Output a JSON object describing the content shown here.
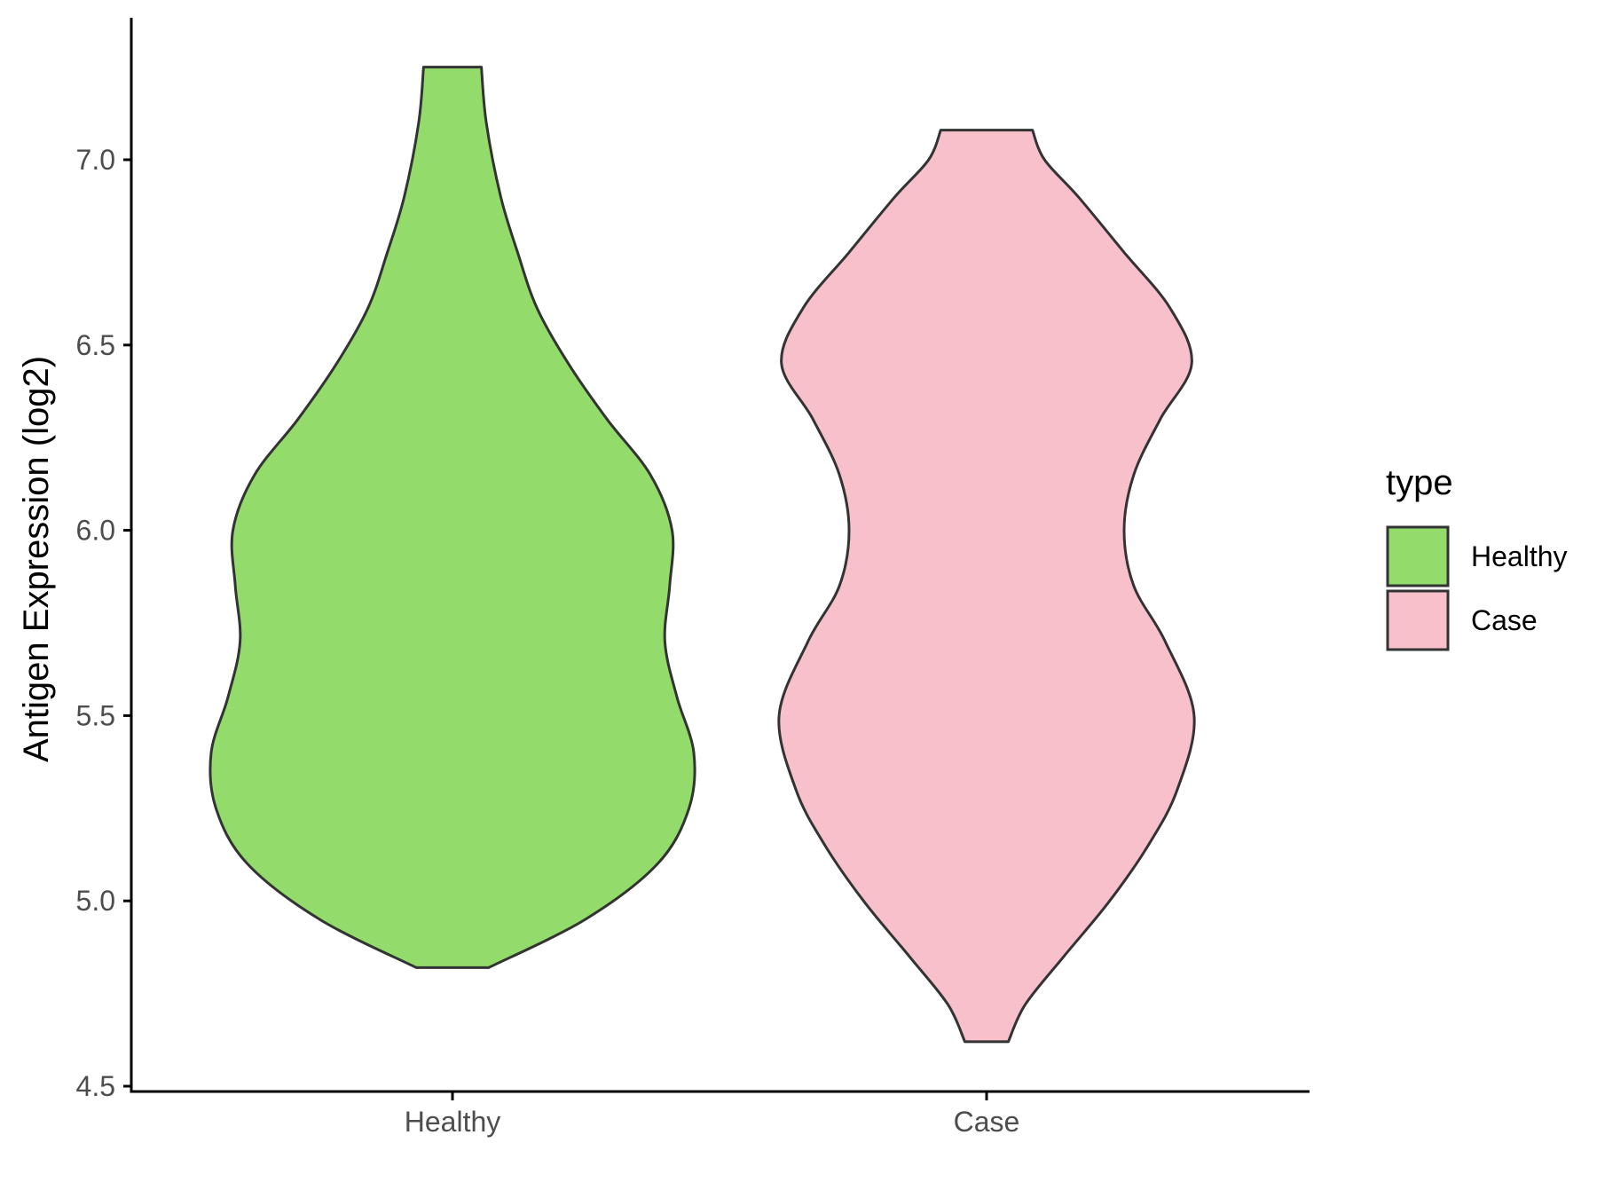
{
  "chart_data": {
    "type": "violin",
    "ylabel": "Antigen Expression (log2)",
    "xlabel": "",
    "ylim": [
      4.5,
      7.35
    ],
    "yticks": [
      "4.5",
      "5.0",
      "5.5",
      "6.0",
      "6.5",
      "7.0"
    ],
    "categories": [
      "Healthy",
      "Case"
    ],
    "grid": false,
    "legend": {
      "title": "type",
      "position": "right",
      "entries": [
        {
          "label": "Healthy",
          "color": "#93dc6b"
        },
        {
          "label": "Case",
          "color": "#f7c0cb"
        }
      ]
    },
    "series": [
      {
        "category": "Healthy",
        "color": "#93dc6b",
        "min": 4.82,
        "max": 7.25,
        "density_profile": [
          [
            4.82,
            0.15
          ],
          [
            4.95,
            0.55
          ],
          [
            5.1,
            0.85
          ],
          [
            5.25,
            0.98
          ],
          [
            5.4,
            1.0
          ],
          [
            5.55,
            0.93
          ],
          [
            5.7,
            0.88
          ],
          [
            5.85,
            0.9
          ],
          [
            6.0,
            0.91
          ],
          [
            6.15,
            0.82
          ],
          [
            6.3,
            0.64
          ],
          [
            6.45,
            0.48
          ],
          [
            6.6,
            0.35
          ],
          [
            6.75,
            0.27
          ],
          [
            6.9,
            0.2
          ],
          [
            7.1,
            0.14
          ],
          [
            7.25,
            0.12
          ]
        ]
      },
      {
        "category": "Case",
        "color": "#f7c0cb",
        "min": 4.62,
        "max": 7.08,
        "density_profile": [
          [
            4.62,
            0.09
          ],
          [
            4.72,
            0.16
          ],
          [
            4.85,
            0.32
          ],
          [
            5.0,
            0.51
          ],
          [
            5.15,
            0.67
          ],
          [
            5.3,
            0.79
          ],
          [
            5.5,
            0.86
          ],
          [
            5.7,
            0.74
          ],
          [
            5.85,
            0.61
          ],
          [
            6.0,
            0.57
          ],
          [
            6.15,
            0.61
          ],
          [
            6.3,
            0.72
          ],
          [
            6.45,
            0.85
          ],
          [
            6.6,
            0.76
          ],
          [
            6.75,
            0.57
          ],
          [
            6.9,
            0.38
          ],
          [
            7.0,
            0.24
          ],
          [
            7.08,
            0.19
          ]
        ]
      }
    ]
  }
}
